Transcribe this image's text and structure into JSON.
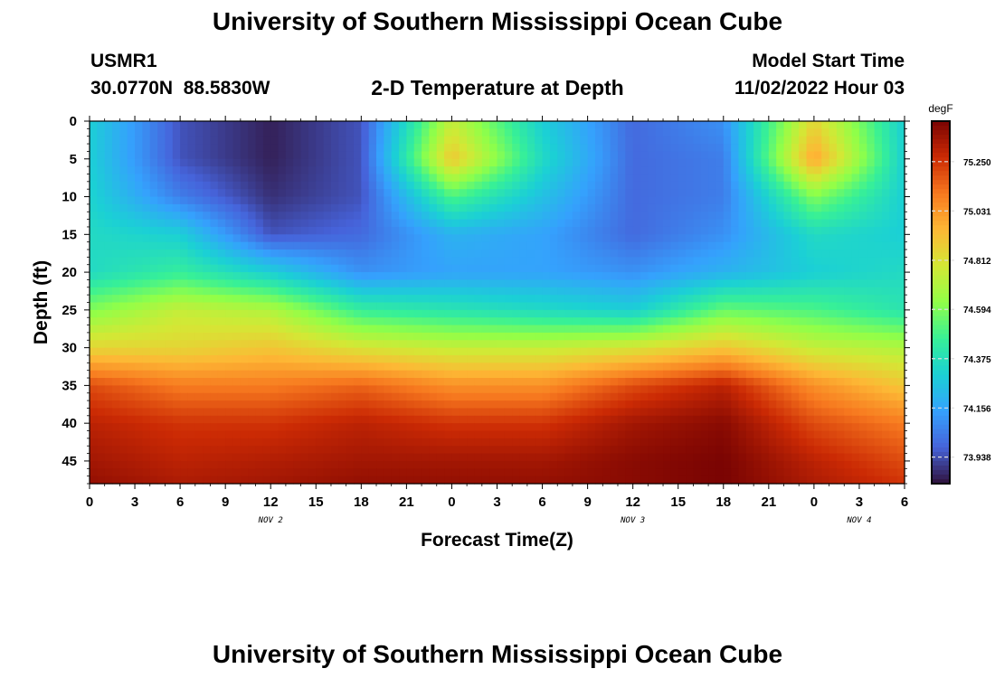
{
  "page": {
    "title": "University of Southern Mississippi Ocean Cube",
    "footer_title": "University of Southern Mississippi Ocean Cube",
    "station": "USMR1",
    "coords": "30.0770N  88.5830W",
    "model_start_label": "Model Start Time",
    "model_start_value": "11/02/2022 Hour 03"
  },
  "chart_data": {
    "type": "heatmap",
    "title": "2-D Temperature at Depth",
    "xlabel": "Forecast Time(Z)",
    "ylabel": "Depth (ft)",
    "x_tick_labels": [
      "0",
      "3",
      "6",
      "9",
      "12",
      "15",
      "18",
      "21",
      "0",
      "3",
      "6",
      "9",
      "12",
      "15",
      "18",
      "21",
      "0",
      "3",
      "6"
    ],
    "x_range_hours": [
      0,
      54
    ],
    "date_labels": [
      {
        "text": "NOV 2",
        "hour": 12
      },
      {
        "text": "NOV 3",
        "hour": 36
      },
      {
        "text": "NOV 4",
        "hour": 51
      }
    ],
    "y_ticks": [
      0,
      5,
      10,
      15,
      20,
      25,
      30,
      35,
      40,
      45
    ],
    "y_range_ft": [
      0,
      48
    ],
    "y_reversed": true,
    "colorbar": {
      "unit": "degF",
      "range": [
        73.82,
        75.43
      ],
      "tick_values": [
        75.25,
        75.031,
        74.812,
        74.594,
        74.375,
        74.156,
        73.938
      ],
      "tick_labels": [
        "75.250",
        "75.031",
        "74.812",
        "74.594",
        "74.375",
        "74.156",
        "73.938"
      ]
    },
    "x_hours": [
      0,
      6,
      12,
      18,
      24,
      30,
      36,
      42,
      48,
      54
    ],
    "z_depths_ft": [
      0,
      5,
      10,
      15,
      20,
      25,
      30,
      35,
      40,
      45,
      48
    ],
    "z_degF": [
      [
        74.3,
        73.95,
        73.85,
        73.95,
        74.75,
        74.3,
        74.0,
        74.1,
        74.85,
        74.3
      ],
      [
        74.3,
        73.95,
        73.85,
        73.95,
        74.9,
        74.35,
        74.0,
        74.05,
        75.0,
        74.3
      ],
      [
        74.32,
        74.05,
        73.88,
        73.95,
        74.5,
        74.25,
        74.0,
        74.05,
        74.6,
        74.3
      ],
      [
        74.35,
        74.3,
        73.95,
        74.0,
        74.2,
        74.15,
        74.0,
        74.1,
        74.35,
        74.3
      ],
      [
        74.35,
        74.45,
        74.3,
        74.1,
        74.15,
        74.15,
        74.1,
        74.2,
        74.3,
        74.35
      ],
      [
        74.6,
        74.75,
        74.7,
        74.45,
        74.4,
        74.35,
        74.3,
        74.55,
        74.5,
        74.4
      ],
      [
        74.85,
        74.85,
        74.9,
        74.8,
        74.75,
        74.75,
        74.8,
        74.9,
        74.75,
        74.7
      ],
      [
        75.2,
        75.1,
        75.1,
        75.15,
        75.05,
        75.05,
        75.2,
        75.3,
        75.05,
        74.9
      ],
      [
        75.3,
        75.25,
        75.25,
        75.3,
        75.25,
        75.25,
        75.35,
        75.4,
        75.2,
        75.1
      ],
      [
        75.35,
        75.3,
        75.32,
        75.35,
        75.35,
        75.35,
        75.4,
        75.43,
        75.3,
        75.2
      ],
      [
        75.38,
        75.33,
        75.35,
        75.38,
        75.38,
        75.38,
        75.4,
        75.43,
        75.33,
        75.25
      ]
    ]
  }
}
